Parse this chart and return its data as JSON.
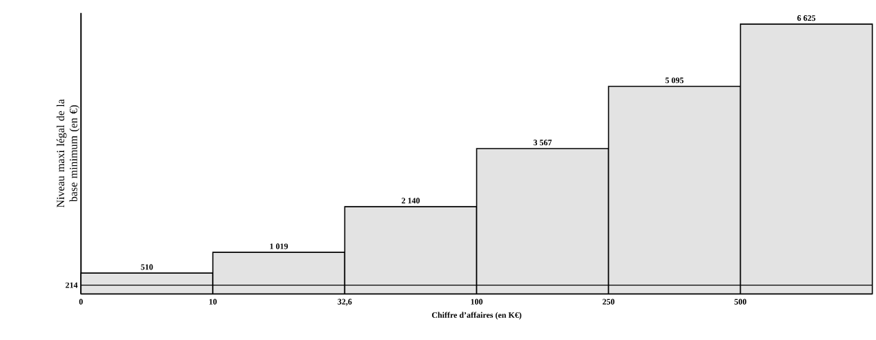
{
  "chart_data": {
    "type": "bar",
    "xlabel": "Chiffre d’affaires (en K€)",
    "ylabel": "Niveau maxi légal de la base minimum (en €)",
    "categories": [
      null,
      null,
      null,
      null,
      null,
      null
    ],
    "values": [
      510,
      1019,
      2140,
      3567,
      5095,
      6625
    ],
    "value_labels": [
      "510",
      "1 019",
      "2 140",
      "3 567",
      "5 095",
      "6 625"
    ],
    "color": "#e3e3e3",
    "ylim": [
      0,
      6900
    ],
    "ref_lines": [
      {
        "axis": "y",
        "value": 214,
        "label": "214"
      }
    ],
    "annotations": [
      "0",
      "10",
      "32,6",
      "100",
      "250",
      "500"
    ]
  }
}
